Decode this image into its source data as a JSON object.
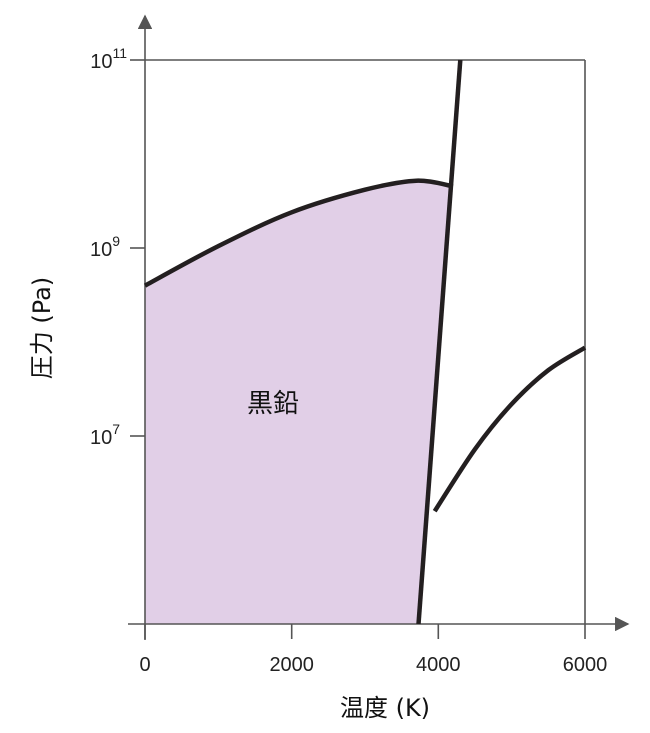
{
  "chart_data": {
    "type": "area",
    "xlabel": "温度 (K)",
    "ylabel": "圧力 (Pa)",
    "xlim": [
      0,
      6000
    ],
    "ylim_log10": [
      6,
      11
    ],
    "y_scale": "log",
    "x_ticks": [
      {
        "value": 0,
        "label": "0"
      },
      {
        "value": 2000,
        "label": "2000"
      },
      {
        "value": 4000,
        "label": "4000"
      },
      {
        "value": 6000,
        "label": "6000"
      }
    ],
    "y_ticks": [
      {
        "log10": 7,
        "base": "10",
        "exp": "7"
      },
      {
        "log10": 9,
        "base": "10",
        "exp": "9"
      },
      {
        "log10": 11,
        "base": "10",
        "exp": "11"
      }
    ],
    "region_label": "黒鉛",
    "fill_color": "#e1cfe7",
    "line_color": "#231f20",
    "series": [
      {
        "curve": "upper-boundary",
        "points": [
          [
            0,
            9.0
          ],
          [
            1000,
            9.35
          ],
          [
            2000,
            9.65
          ],
          [
            3000,
            9.85
          ],
          [
            3700,
            9.93
          ],
          [
            4200,
            9.88
          ]
        ]
      },
      {
        "curve": "steep-line",
        "points": [
          [
            3730,
            6.0
          ],
          [
            4300,
            11.0
          ]
        ]
      },
      {
        "curve": "right-curve",
        "points": [
          [
            3950,
            7.0
          ],
          [
            4500,
            7.55
          ],
          [
            5000,
            7.95
          ],
          [
            5500,
            8.25
          ],
          [
            6000,
            8.45
          ]
        ]
      }
    ]
  }
}
